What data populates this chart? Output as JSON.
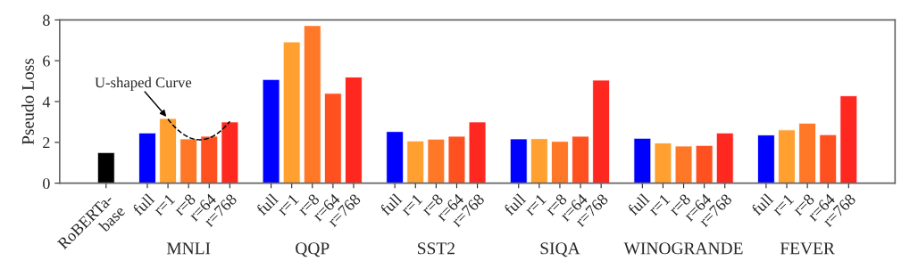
{
  "chart_data": {
    "type": "bar",
    "ylabel": "Pseudo Loss",
    "categories": [
      "RoBERTa-\nbase",
      null,
      "full",
      "r=1",
      "r=8",
      "r=64",
      "r=768",
      null,
      "full",
      "r=1",
      "r=8",
      "r=64",
      "r=768",
      null,
      "full",
      "r=1",
      "r=8",
      "r=64",
      "r=768",
      null,
      "full",
      "r=1",
      "r=8",
      "r=64",
      "r=768",
      null,
      "full",
      "r=1",
      "r=8",
      "r=64",
      "r=768",
      null,
      "full",
      "r=1",
      "r=8",
      "r=64",
      "r=768"
    ],
    "values": [
      1.5,
      null,
      2.46,
      3.17,
      2.17,
      2.3,
      3.0,
      null,
      5.08,
      6.92,
      7.72,
      4.4,
      5.2,
      null,
      2.53,
      2.07,
      2.16,
      2.3,
      3.0,
      null,
      2.17,
      2.18,
      2.05,
      2.3,
      5.05,
      null,
      2.2,
      1.97,
      1.82,
      1.85,
      2.46,
      null,
      2.36,
      2.61,
      2.94,
      2.38,
      4.28
    ],
    "colors": [
      "#000000",
      null,
      "#0000ff",
      "#ffa030",
      "#ff7828",
      "#ff5020",
      "#ff2820",
      null,
      "#0000ff",
      "#ffa030",
      "#ff7828",
      "#ff5020",
      "#ff2820",
      null,
      "#0000ff",
      "#ffa030",
      "#ff7828",
      "#ff5020",
      "#ff2820",
      null,
      "#0000ff",
      "#ffa030",
      "#ff7828",
      "#ff5020",
      "#ff2820",
      null,
      "#0000ff",
      "#ffa030",
      "#ff7828",
      "#ff5020",
      "#ff2820",
      null,
      "#0000ff",
      "#ffa030",
      "#ff7828",
      "#ff5020",
      "#ff2820"
    ],
    "ylim": [
      0,
      8
    ],
    "yticks": [
      0,
      2,
      4,
      6,
      8
    ],
    "grid": false,
    "annotations": [
      "MNLI",
      "QQP",
      "SST2",
      "SIQA",
      "WINOGRANDE",
      "FEVER",
      "U-shaped Curve"
    ]
  }
}
